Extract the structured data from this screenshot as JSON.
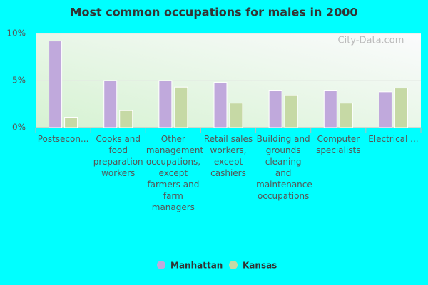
{
  "chart_data": {
    "type": "bar",
    "title": "Most common occupations for males in 2000",
    "watermark": "City-Data.com",
    "categories": [
      "Postsecon...",
      "Cooks and food preparation workers",
      "Other management occupations, except farmers and farm managers",
      "Retail sales workers, except cashiers",
      "Building and grounds cleaning and maintenance occupations",
      "Computer specialists",
      "Electrical ..."
    ],
    "series": [
      {
        "name": "Manhattan",
        "color": "#c0a9dc",
        "values": [
          9.2,
          5.0,
          5.0,
          4.8,
          3.9,
          3.9,
          3.8
        ]
      },
      {
        "name": "Kansas",
        "color": "#c6d9a5",
        "values": [
          1.1,
          1.8,
          4.3,
          2.6,
          3.4,
          2.6,
          4.2
        ]
      }
    ],
    "ylim": [
      0,
      10
    ],
    "yticks": [
      {
        "value": 0,
        "label": "0%"
      },
      {
        "value": 5,
        "label": "5%"
      },
      {
        "value": 10,
        "label": "10%"
      }
    ],
    "grid": true
  }
}
